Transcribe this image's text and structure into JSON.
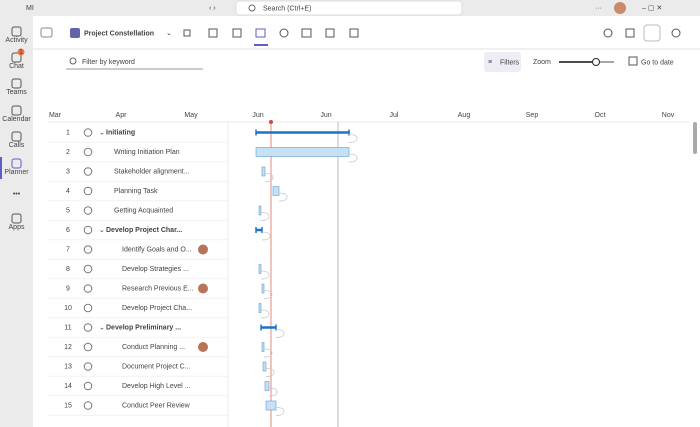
{
  "titlebar": {
    "account": "MI",
    "search": "Search (Ctrl+E)"
  },
  "sidebar": [
    {
      "label": "Activity"
    },
    {
      "label": "Chat",
      "badge": "1"
    },
    {
      "label": "Teams"
    },
    {
      "label": "Calendar"
    },
    {
      "label": "Calls"
    },
    {
      "label": "Planner"
    },
    {
      "label": "•••"
    },
    {
      "label": "Apps"
    }
  ],
  "header": {
    "title": "Project Constellation"
  },
  "toolbar": {
    "filter_placeholder": "Filter by keyword",
    "filters": "Filters",
    "zoom": "Zoom",
    "go_to_date": "Go to date"
  },
  "timeline": {
    "months": [
      "Mar",
      "Apr",
      "May",
      "Jun",
      "Jun",
      "Jul",
      "Aug",
      "Sep",
      "Oct",
      "Nov"
    ]
  },
  "tasks": [
    {
      "num": "1",
      "name": "Initiating"
    },
    {
      "num": "2",
      "name": "Writing Initiation Plan"
    },
    {
      "num": "3",
      "name": "Stakeholder alignment..."
    },
    {
      "num": "4",
      "name": "Planning Task"
    },
    {
      "num": "5",
      "name": "Getting Acquainted"
    },
    {
      "num": "6",
      "name": "Develop Project Char..."
    },
    {
      "num": "7",
      "name": "Identify Goals and O..."
    },
    {
      "num": "8",
      "name": "Develop Strategies ..."
    },
    {
      "num": "9",
      "name": "Research Previous E..."
    },
    {
      "num": "10",
      "name": "Develop Project Cha..."
    },
    {
      "num": "11",
      "name": "Develop Preliminary ..."
    },
    {
      "num": "12",
      "name": "Conduct Planning ..."
    },
    {
      "num": "13",
      "name": "Document Project C..."
    },
    {
      "num": "14",
      "name": "Develop High Level ..."
    },
    {
      "num": "15",
      "name": "Conduct Peer Review"
    }
  ]
}
